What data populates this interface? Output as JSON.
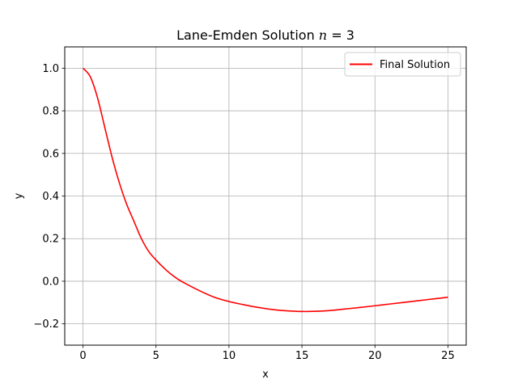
{
  "chart_data": {
    "type": "line",
    "title": "Lane-Emden Solution n = 3",
    "title_main": "Lane-Emden Solution ",
    "title_math": "n",
    "title_tail": " = 3",
    "xlabel": "x",
    "ylabel": "y",
    "xlim": [
      -1.25,
      26.25
    ],
    "ylim": [
      -0.3,
      1.1
    ],
    "xticks": [
      0,
      5,
      10,
      15,
      20,
      25
    ],
    "xtick_labels": [
      "0",
      "5",
      "10",
      "15",
      "20",
      "25"
    ],
    "yticks": [
      -0.2,
      0.0,
      0.2,
      0.4,
      0.6,
      0.8,
      1.0
    ],
    "ytick_labels": [
      "−0.2",
      "0.0",
      "0.2",
      "0.4",
      "0.6",
      "0.8",
      "1.0"
    ],
    "grid": true,
    "legend_position": "top-right",
    "series": [
      {
        "name": "Final Solution",
        "color": "#ff0000",
        "x": [
          0,
          0.5,
          1,
          1.5,
          2,
          2.5,
          3,
          3.5,
          4,
          4.5,
          5,
          5.5,
          6,
          6.5,
          7,
          8,
          9,
          10,
          11,
          12,
          13,
          14,
          15,
          16,
          17,
          18,
          19,
          20,
          21,
          22,
          23,
          24,
          25
        ],
        "y": [
          1.0,
          0.96,
          0.86,
          0.72,
          0.58,
          0.46,
          0.36,
          0.28,
          0.2,
          0.14,
          0.1,
          0.065,
          0.035,
          0.01,
          -0.01,
          -0.045,
          -0.075,
          -0.095,
          -0.11,
          -0.123,
          -0.133,
          -0.139,
          -0.142,
          -0.141,
          -0.137,
          -0.13,
          -0.123,
          -0.115,
          -0.107,
          -0.099,
          -0.091,
          -0.083,
          -0.075
        ]
      }
    ]
  }
}
